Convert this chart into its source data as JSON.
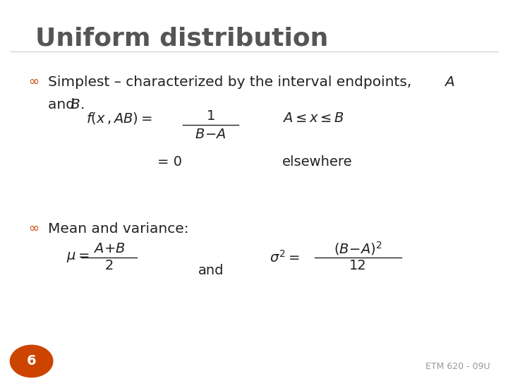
{
  "background_color": "#ffffff",
  "border_color": "#bbbbbb",
  "title": "Uniform distribution",
  "title_fontsize": 26,
  "title_color": "#555555",
  "bullet_color": "#cc4400",
  "slide_number": "6",
  "slide_number_bg": "#cc4400",
  "footer": "ETM 620 - 09U"
}
